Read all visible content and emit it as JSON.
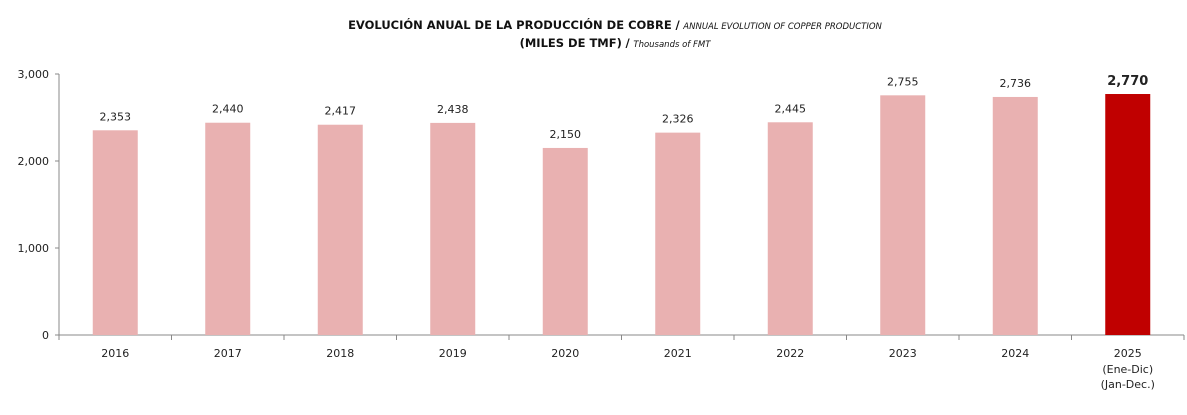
{
  "chart_data": {
    "type": "bar",
    "title": "EVOLUCIÓN ANUAL DE LA PRODUCCIÓN DE COBRE",
    "title_en": "ANNUAL EVOLUTION OF COPPER PRODUCTION",
    "subtitle": "(MILES DE TMF)",
    "subtitle_en": "Thousands of FMT",
    "separator": "/",
    "categories": [
      "2016",
      "2017",
      "2018",
      "2019",
      "2020",
      "2021",
      "2022",
      "2023",
      "2024",
      "2025"
    ],
    "category_sublabels": {
      "2025": [
        "(Ene-Dic)",
        "(Jan-Dec.)"
      ]
    },
    "values": [
      2353,
      2440,
      2417,
      2438,
      2150,
      2326,
      2445,
      2755,
      2736,
      2770
    ],
    "value_labels": [
      "2,353",
      "2,440",
      "2,417",
      "2,438",
      "2,150",
      "2,326",
      "2,445",
      "2,755",
      "2,736",
      "2,770"
    ],
    "highlight_index": 9,
    "ylim": [
      0,
      3000
    ],
    "yticks": [
      0,
      1000,
      2000,
      3000
    ],
    "ytick_labels": [
      "0",
      "1,000",
      "2,000",
      "3,000"
    ],
    "grid": false,
    "colors": {
      "bar": "#e9b1b1",
      "highlight": "#c00000",
      "axis": "#888888"
    }
  }
}
